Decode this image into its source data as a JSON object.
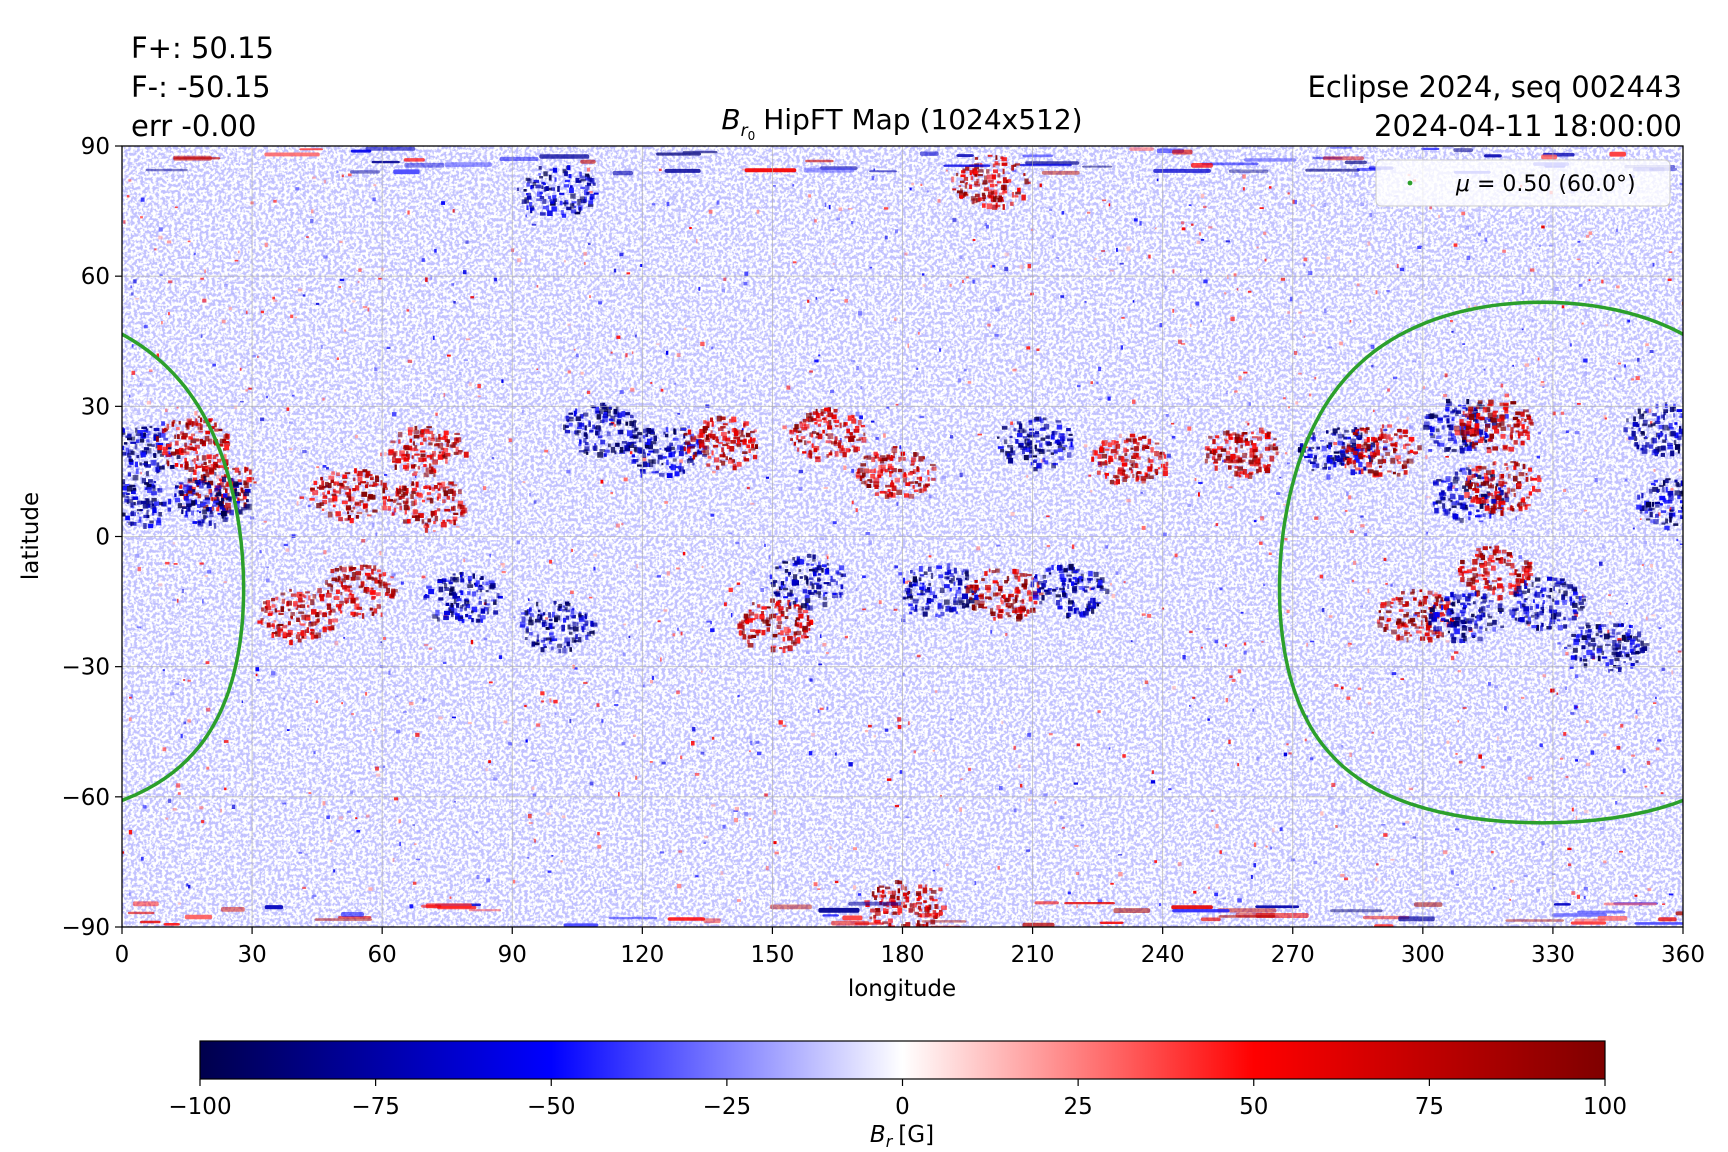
{
  "annotations": {
    "flux_plus": "F+: 50.15",
    "flux_minus": "F-: -50.15",
    "err": "err -0.00",
    "source_line1": "Eclipse 2024, seq 002443",
    "source_line2": "2024-04-11 18:00:00"
  },
  "chart_data": {
    "type": "heatmap",
    "title": {
      "symbol": "B",
      "sub": "r",
      "subsub": "0",
      "text": "HipFT Map (1024x512)"
    },
    "xlabel": "longitude",
    "ylabel": "latitude",
    "xlim": [
      0,
      360
    ],
    "ylim": [
      -90,
      90
    ],
    "xticks": [
      0,
      30,
      60,
      90,
      120,
      150,
      180,
      210,
      240,
      270,
      300,
      330,
      360
    ],
    "yticks": [
      -90,
      -60,
      -30,
      0,
      30,
      60,
      90
    ],
    "xtick_labels": [
      "0",
      "30",
      "60",
      "90",
      "120",
      "150",
      "180",
      "210",
      "240",
      "270",
      "300",
      "330",
      "360"
    ],
    "ytick_labels": [
      "−90",
      "−60",
      "−30",
      "0",
      "30",
      "60",
      "90"
    ],
    "grid": true,
    "colormap": {
      "name": "seismic",
      "min": -100,
      "max": 100,
      "stops": [
        {
          "value": -100,
          "color": "#00004c"
        },
        {
          "value": -50,
          "color": "#0000ff"
        },
        {
          "value": 0,
          "color": "#ffffff"
        },
        {
          "value": 50,
          "color": "#ff0000"
        },
        {
          "value": 100,
          "color": "#7f0000"
        }
      ],
      "ticks": [
        -100,
        -75,
        -50,
        -25,
        0,
        25,
        50,
        75,
        100
      ],
      "tick_labels": [
        "−100",
        "−75",
        "−50",
        "−25",
        "0",
        "25",
        "50",
        "75",
        "100"
      ],
      "label": {
        "symbol": "B",
        "sub": "r",
        "unit": "[G]"
      }
    },
    "legend": {
      "placement": "top-right",
      "entries": [
        {
          "label_symbol": "μ",
          "label_text": " = 0.50 (60.0°)",
          "color": "#2ca02c"
        }
      ]
    },
    "mu_contour": {
      "mu": 0.5,
      "angle_deg": 60,
      "center_lon": 327.5,
      "center_lat": -6,
      "color": "#2ca02c"
    },
    "active_regions": [
      {
        "lon": 2,
        "lat": 8,
        "sign": -1
      },
      {
        "lon": 4,
        "lat": 20,
        "sign": -1
      },
      {
        "lon": 16,
        "lat": 22,
        "sign": 1
      },
      {
        "lon": 22,
        "lat": 12,
        "sign": 1
      },
      {
        "lon": 20,
        "lat": 9,
        "sign": -1
      },
      {
        "lon": 40,
        "lat": -18,
        "sign": 1
      },
      {
        "lon": 52,
        "lat": 10,
        "sign": 1
      },
      {
        "lon": 54,
        "lat": -12,
        "sign": 1
      },
      {
        "lon": 70,
        "lat": 8,
        "sign": 1
      },
      {
        "lon": 70,
        "lat": 20,
        "sign": 1
      },
      {
        "lon": 78,
        "lat": -14,
        "sign": -1
      },
      {
        "lon": 100,
        "lat": -20,
        "sign": -1
      },
      {
        "lon": 110,
        "lat": 25,
        "sign": -1
      },
      {
        "lon": 125,
        "lat": 20,
        "sign": -1
      },
      {
        "lon": 138,
        "lat": 22,
        "sign": 1
      },
      {
        "lon": 150,
        "lat": -20,
        "sign": 1
      },
      {
        "lon": 158,
        "lat": -10,
        "sign": -1
      },
      {
        "lon": 162,
        "lat": 24,
        "sign": 1
      },
      {
        "lon": 178,
        "lat": 15,
        "sign": 1
      },
      {
        "lon": 188,
        "lat": -12,
        "sign": -1
      },
      {
        "lon": 203,
        "lat": -13,
        "sign": 1
      },
      {
        "lon": 210,
        "lat": 22,
        "sign": -1
      },
      {
        "lon": 218,
        "lat": -12,
        "sign": -1
      },
      {
        "lon": 232,
        "lat": 18,
        "sign": 1
      },
      {
        "lon": 258,
        "lat": 20,
        "sign": 1
      },
      {
        "lon": 280,
        "lat": 20,
        "sign": -1
      },
      {
        "lon": 290,
        "lat": 20,
        "sign": 1
      },
      {
        "lon": 308,
        "lat": 26,
        "sign": -1
      },
      {
        "lon": 316,
        "lat": 26,
        "sign": 1
      },
      {
        "lon": 310,
        "lat": 10,
        "sign": -1
      },
      {
        "lon": 318,
        "lat": 12,
        "sign": 1
      },
      {
        "lon": 316,
        "lat": -8,
        "sign": 1
      },
      {
        "lon": 328,
        "lat": -15,
        "sign": -1
      },
      {
        "lon": 298,
        "lat": -18,
        "sign": 1
      },
      {
        "lon": 310,
        "lat": -18,
        "sign": -1
      },
      {
        "lon": 342,
        "lat": -25,
        "sign": -1
      },
      {
        "lon": 355,
        "lat": 25,
        "sign": -1
      },
      {
        "lon": 358,
        "lat": 8,
        "sign": -1
      },
      {
        "lon": 100,
        "lat": 80,
        "sign": -1
      },
      {
        "lon": 200,
        "lat": 82,
        "sign": 1
      },
      {
        "lon": 180,
        "lat": -85,
        "sign": 1
      }
    ]
  }
}
